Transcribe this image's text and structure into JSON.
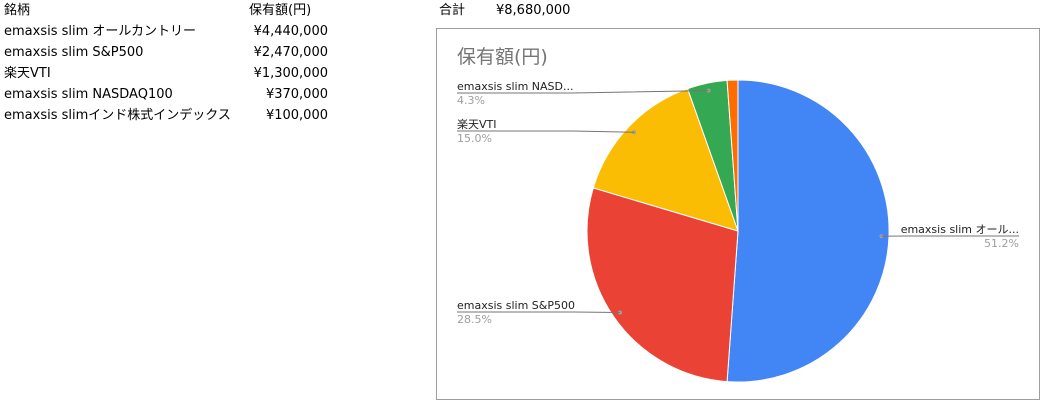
{
  "table": {
    "header": {
      "name": "銘柄",
      "amount": "保有額(円)"
    },
    "rows": [
      {
        "name": "emaxsis slim オールカントリー",
        "amount": "¥4,440,000"
      },
      {
        "name": "emaxsis slim S&P500",
        "amount": "¥2,470,000"
      },
      {
        "name": "楽天VTI",
        "amount": "¥1,300,000"
      },
      {
        "name": "emaxsis slim NASDAQ100",
        "amount": "¥370,000"
      },
      {
        "name": "emaxsis slimインド株式インデックス",
        "amount": "¥100,000"
      }
    ]
  },
  "total": {
    "label": "合計",
    "value": "¥8,680,000"
  },
  "chart_data": {
    "type": "pie",
    "title": "保有額(円)",
    "categories": [
      "emaxsis slim オールカントリー",
      "emaxsis slim S&P500",
      "楽天VTI",
      "emaxsis slim NASDAQ100",
      "emaxsis slimインド株式インデックス"
    ],
    "values": [
      4440000,
      2470000,
      1300000,
      370000,
      100000
    ],
    "colors": [
      "#4285f4",
      "#ea4335",
      "#fbbc04",
      "#34a853",
      "#ff6d01"
    ],
    "slice_labels": [
      {
        "name": "emaxsis slim オール...",
        "percent": "51.2%"
      },
      {
        "name": "emaxsis slim S&P500",
        "percent": "28.5%"
      },
      {
        "name": "楽天VTI",
        "percent": "15.0%"
      },
      {
        "name": "emaxsis slim NASD...",
        "percent": "4.3%"
      },
      {
        "name": "",
        "percent": ""
      }
    ]
  }
}
